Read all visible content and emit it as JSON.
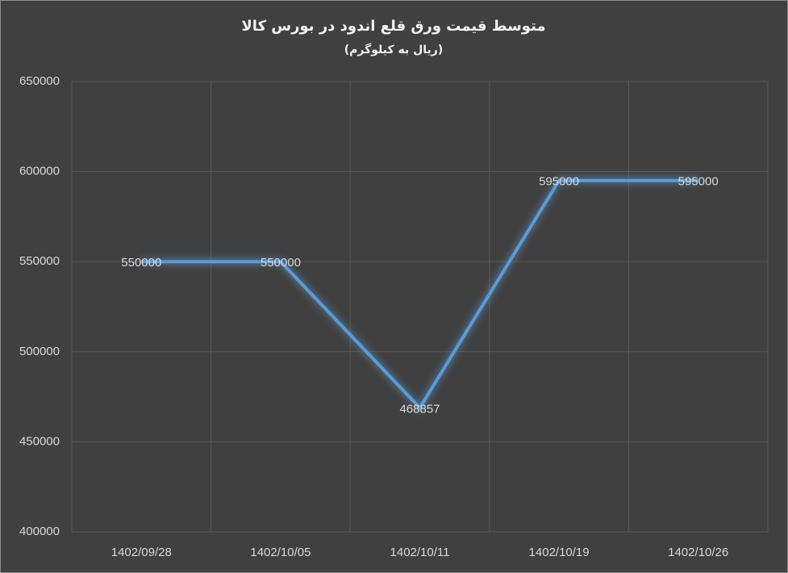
{
  "chart_data": {
    "type": "line",
    "title": "متوسط قیمت ورق قلع اندود در بورس کالا",
    "subtitle": "(ریال به کیلوگرم)",
    "categories": [
      "1402/09/28",
      "1402/10/05",
      "1402/10/11",
      "1402/10/19",
      "1402/10/26"
    ],
    "values": [
      550000,
      550000,
      468857,
      595000,
      595000
    ],
    "color": "#5b9bd5",
    "ylim": [
      400000,
      650000
    ],
    "yticks": [
      400000,
      450000,
      500000,
      550000,
      600000,
      650000
    ],
    "grid": true
  }
}
